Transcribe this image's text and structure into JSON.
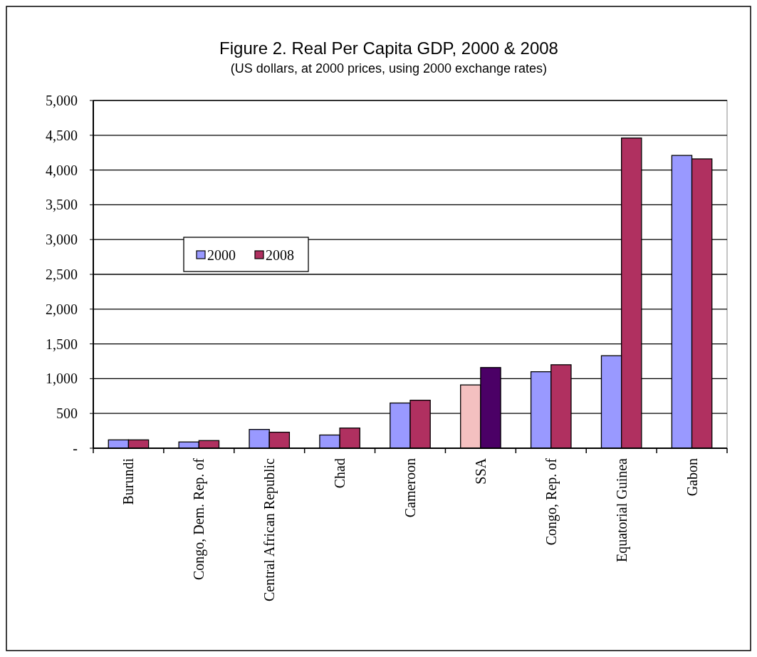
{
  "chart_data": {
    "type": "bar",
    "title": "Figure 2. Real Per Capita GDP, 2000 & 2008",
    "subtitle": "(US dollars, at 2000 prices, using 2000 exchange rates)",
    "categories": [
      "Burundi",
      "Congo, Dem. Rep. of",
      "Central African Republic",
      "Chad",
      "Cameroon",
      "SSA",
      "Congo, Rep. of",
      "Equatorial Guinea",
      "Gabon"
    ],
    "series": [
      {
        "name": "2000",
        "color": "#9999ff",
        "colors": [
          "#9999ff",
          "#9999ff",
          "#9999ff",
          "#9999ff",
          "#9999ff",
          "#f4c0c0",
          "#9999ff",
          "#9999ff",
          "#9999ff"
        ],
        "values": [
          120,
          90,
          270,
          190,
          650,
          910,
          1100,
          1330,
          4210
        ]
      },
      {
        "name": "2008",
        "color": "#b03060",
        "colors": [
          "#b03060",
          "#b03060",
          "#b03060",
          "#b03060",
          "#b03060",
          "#4b0066",
          "#b03060",
          "#b03060",
          "#b03060"
        ],
        "values": [
          120,
          110,
          230,
          290,
          690,
          1160,
          1200,
          4460,
          4160
        ]
      }
    ],
    "ylim": [
      0,
      5000
    ],
    "yticks": [
      {
        "value": 0,
        "label": "-"
      },
      {
        "value": 500,
        "label": "500"
      },
      {
        "value": 1000,
        "label": "1,000"
      },
      {
        "value": 1500,
        "label": "1,500"
      },
      {
        "value": 2000,
        "label": "2,000"
      },
      {
        "value": 2500,
        "label": "2,500"
      },
      {
        "value": 3000,
        "label": "3,000"
      },
      {
        "value": 3500,
        "label": "3,500"
      },
      {
        "value": 4000,
        "label": "4,000"
      },
      {
        "value": 4500,
        "label": "4,500"
      },
      {
        "value": 5000,
        "label": "5,000"
      }
    ],
    "grid": "y",
    "legend": "left"
  }
}
